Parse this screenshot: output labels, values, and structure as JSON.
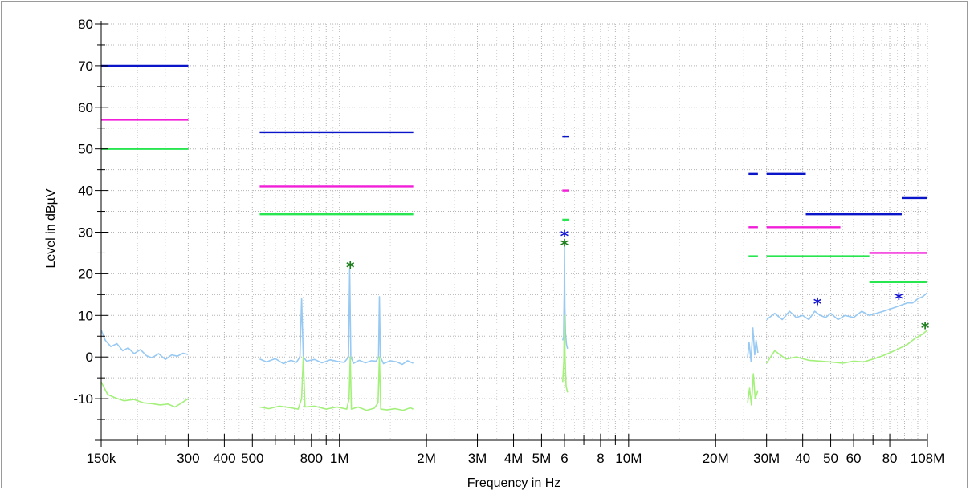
{
  "chart_data": {
    "type": "line",
    "xscale": "log",
    "xlabel": "Frequency in Hz",
    "ylabel": "Level in dBµV",
    "xlim_hz": [
      150000,
      108000000
    ],
    "ylim": [
      -20,
      80
    ],
    "grid": true,
    "y_ticks": [
      80,
      70,
      60,
      50,
      40,
      30,
      20,
      10,
      0,
      -10
    ],
    "x_tick_labels": [
      {
        "hz": 150000,
        "text": "150k"
      },
      {
        "hz": 300000,
        "text": "300"
      },
      {
        "hz": 400000,
        "text": "400"
      },
      {
        "hz": 500000,
        "text": "500"
      },
      {
        "hz": 800000,
        "text": "800"
      },
      {
        "hz": 1000000,
        "text": "1M"
      },
      {
        "hz": 2000000,
        "text": "2M"
      },
      {
        "hz": 3000000,
        "text": "3M"
      },
      {
        "hz": 4000000,
        "text": "4M"
      },
      {
        "hz": 5000000,
        "text": "5M"
      },
      {
        "hz": 6000000,
        "text": "6"
      },
      {
        "hz": 8000000,
        "text": "8"
      },
      {
        "hz": 10000000,
        "text": "10M"
      },
      {
        "hz": 20000000,
        "text": "20M"
      },
      {
        "hz": 30000000,
        "text": "30M"
      },
      {
        "hz": 40000000,
        "text": "40"
      },
      {
        "hz": 50000000,
        "text": "50"
      },
      {
        "hz": 60000000,
        "text": "60"
      },
      {
        "hz": 80000000,
        "text": "80"
      },
      {
        "hz": 108000000,
        "text": "108M"
      }
    ],
    "x_minor_ticks_hz": [
      200000,
      250000,
      600000,
      700000,
      900000,
      7000000,
      9000000,
      70000000
    ],
    "limit_lines": [
      {
        "color": "#0a14c8",
        "segments": [
          {
            "x": [
              150000,
              300000
            ],
            "y": 70
          },
          {
            "x": [
              530000,
              1800000
            ],
            "y": 54
          },
          {
            "x": [
              5900000,
              6200000
            ],
            "y": 53
          },
          {
            "x": [
              26000000,
              28000000
            ],
            "y": 44
          },
          {
            "x": [
              30000000,
              41000000
            ],
            "y": 44
          },
          {
            "x": [
              41000000,
              88000000
            ],
            "y": 34.3
          },
          {
            "x": [
              88000000,
              108000000
            ],
            "y": 38.2
          }
        ]
      },
      {
        "color": "#f21fd8",
        "segments": [
          {
            "x": [
              150000,
              300000
            ],
            "y": 57
          },
          {
            "x": [
              530000,
              1800000
            ],
            "y": 41
          },
          {
            "x": [
              5900000,
              6200000
            ],
            "y": 40
          },
          {
            "x": [
              26000000,
              28000000
            ],
            "y": 31.2
          },
          {
            "x": [
              30000000,
              54000000
            ],
            "y": 31.2
          },
          {
            "x": [
              68000000,
              108000000
            ],
            "y": 25
          }
        ]
      },
      {
        "color": "#28e650",
        "segments": [
          {
            "x": [
              150000,
              300000
            ],
            "y": 50
          },
          {
            "x": [
              530000,
              1800000
            ],
            "y": 34.3
          },
          {
            "x": [
              5900000,
              6200000
            ],
            "y": 33
          },
          {
            "x": [
              26000000,
              28000000
            ],
            "y": 24.2
          },
          {
            "x": [
              30000000,
              68000000
            ],
            "y": 24.2
          },
          {
            "x": [
              68000000,
              108000000
            ],
            "y": 18
          }
        ]
      }
    ],
    "series": [
      {
        "color": "#97c9f2",
        "segments": [
          {
            "x": [
              150000,
              155000,
              162000,
              170000,
              178000,
              186000,
              195000,
              205000,
              215000,
              225000,
              237000,
              250000,
              263000,
              275000,
              288000,
              300000
            ],
            "y": [
              6.5,
              4,
              2.5,
              3.2,
              1.5,
              2.2,
              0.8,
              1.8,
              0.3,
              -0.2,
              0.8,
              -0.6,
              0.5,
              0.2,
              0.9,
              0.6
            ]
          },
          {
            "x": [
              530000,
              560000,
              600000,
              640000,
              680000,
              710000,
              730000,
              740000,
              750000,
              770000,
              820000,
              870000,
              930000,
              990000,
              1040000,
              1075000,
              1085000,
              1095000,
              1120000,
              1170000,
              1230000,
              1290000,
              1340000,
              1365000,
              1375000,
              1385000,
              1420000,
              1500000,
              1580000,
              1650000,
              1720000,
              1800000
            ],
            "y": [
              -0.5,
              -1.2,
              -0.4,
              -1.6,
              -0.8,
              -1.3,
              0,
              14,
              0,
              -1,
              -0.6,
              -1.4,
              -0.7,
              -1.1,
              -1.3,
              0,
              21,
              0,
              -1.5,
              -0.8,
              -1.4,
              -0.9,
              -1,
              0,
              14.5,
              0,
              -1.6,
              -0.9,
              -1.2,
              -1.8,
              -0.9,
              -1.5
            ]
          },
          {
            "x": [
              5920000,
              5960000,
              5990000,
              6000000,
              6020000,
              6050000,
              6100000,
              6150000
            ],
            "y": [
              4,
              5,
              16,
              28,
              12,
              6,
              3,
              2
            ]
          },
          {
            "x": [
              25800000,
              26100000,
              26500000,
              26900000,
              27300000,
              27600000,
              28000000
            ],
            "y": [
              0,
              3.5,
              -1,
              7,
              0.5,
              4,
              1
            ]
          },
          {
            "x": [
              30000000,
              32000000,
              34000000,
              36000000,
              38000000,
              40000000,
              42000000,
              44000000,
              46000000,
              48000000,
              50000000,
              53000000,
              56000000,
              60000000,
              64000000,
              68000000,
              72000000,
              76000000,
              80000000,
              84000000,
              88000000,
              92000000,
              96000000,
              100000000,
              104000000,
              108000000
            ],
            "y": [
              9,
              10.5,
              9,
              11,
              9.5,
              10,
              9,
              11,
              10,
              9.5,
              10.5,
              9,
              10,
              9.5,
              11,
              10,
              10.5,
              11,
              11.5,
              12,
              12.5,
              13,
              13,
              14,
              14.5,
              15.5
            ]
          }
        ]
      },
      {
        "color": "#a3f07a",
        "segments": [
          {
            "x": [
              150000,
              158000,
              168000,
              180000,
              195000,
              210000,
              225000,
              240000,
              255000,
              270000,
              285000,
              300000
            ],
            "y": [
              -6,
              -9,
              -9.8,
              -10.5,
              -10.2,
              -11,
              -11.2,
              -11.5,
              -11.3,
              -12,
              -11,
              -10
            ]
          },
          {
            "x": [
              530000,
              570000,
              620000,
              680000,
              720000,
              740000,
              750000,
              760000,
              820000,
              900000,
              980000,
              1060000,
              1080000,
              1090000,
              1100000,
              1160000,
              1240000,
              1320000,
              1360000,
              1375000,
              1390000,
              1460000,
              1560000,
              1660000,
              1760000,
              1800000
            ],
            "y": [
              -12,
              -12.4,
              -11.8,
              -12.2,
              -12.5,
              -10,
              0,
              -12,
              -11.8,
              -12.5,
              -12,
              -12.5,
              -10,
              0,
              -12.5,
              -12,
              -12.8,
              -12.3,
              -11,
              0,
              -12.5,
              -12.7,
              -12.4,
              -12.8,
              -12.2,
              -12.5
            ]
          },
          {
            "x": [
              5920000,
              5970000,
              6000000,
              6030000,
              6080000,
              6150000
            ],
            "y": [
              -6,
              -1,
              10,
              0,
              -7,
              -8.5
            ]
          },
          {
            "x": [
              25800000,
              26200000,
              26600000,
              27000000,
              27400000,
              28000000
            ],
            "y": [
              -11,
              -7.5,
              -11.5,
              -4,
              -10,
              -8
            ]
          },
          {
            "x": [
              30000000,
              32000000,
              35000000,
              38000000,
              42000000,
              46000000,
              50000000,
              55000000,
              60000000,
              65000000,
              70000000,
              75000000,
              80000000,
              86000000,
              92000000,
              98000000,
              104000000,
              108000000
            ],
            "y": [
              -1.5,
              1.5,
              -0.5,
              0,
              -0.8,
              -1,
              -1.2,
              -1.5,
              -1,
              -1.2,
              -0.5,
              0.2,
              1,
              2,
              3,
              4.5,
              5.5,
              6.5
            ]
          }
        ]
      }
    ],
    "markers": [
      {
        "x": 1090000,
        "y": 21.5,
        "color": "#1b7d1b",
        "symbol": "*"
      },
      {
        "x": 6000000,
        "y": 29,
        "color": "#1414d4",
        "symbol": "*"
      },
      {
        "x": 6000000,
        "y": 26.8,
        "color": "#1b7d1b",
        "symbol": "*"
      },
      {
        "x": 45000000,
        "y": 12.8,
        "color": "#1414d4",
        "symbol": "*"
      },
      {
        "x": 86000000,
        "y": 14,
        "color": "#1414d4",
        "symbol": "*"
      },
      {
        "x": 106000000,
        "y": 7,
        "color": "#1b7d1b",
        "symbol": "*"
      }
    ]
  }
}
